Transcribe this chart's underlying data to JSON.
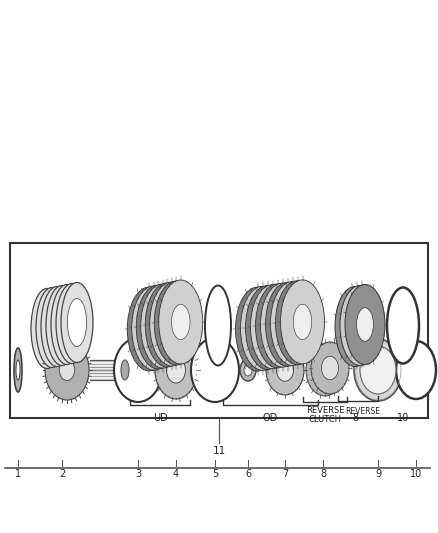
{
  "background_color": "#ffffff",
  "top_labels": [
    "1",
    "2",
    "3",
    "4",
    "5",
    "6",
    "7",
    "8",
    "9",
    "10"
  ],
  "reverse_clutch_line1": "REVERSE",
  "reverse_clutch_line2": "CLUTCH",
  "reverse_text": "REVERSE",
  "ud_text": "UD",
  "od_text": "OD",
  "item_11": "11",
  "fig_width": 4.38,
  "fig_height": 5.33,
  "dpi": 100
}
